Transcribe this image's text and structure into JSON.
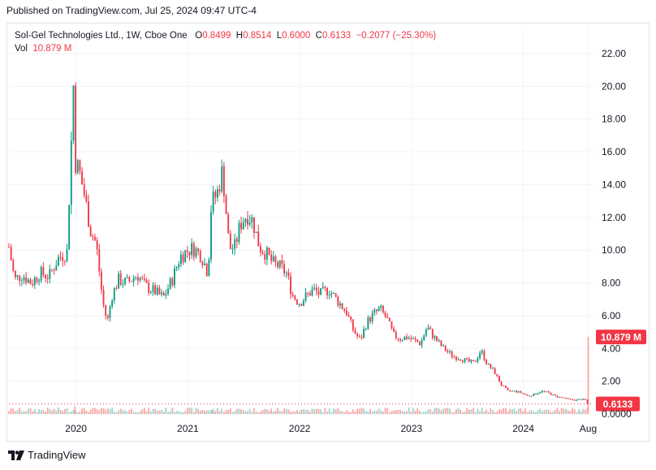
{
  "header": {
    "published": "Published on TradingView.com, Jul 25, 2024 09:47 UTC-4"
  },
  "legend": {
    "symbol": "Sol-Gel Technologies Ltd., 1W, Cboe One",
    "o_label": "O",
    "o_value": "0.8499",
    "h_label": "H",
    "h_value": "0.8514",
    "l_label": "L",
    "l_value": "0.6000",
    "c_label": "C",
    "c_value": "0.6133",
    "change": "−0.2077 (−25.30%)",
    "vol_label": "Vol",
    "vol_value": "10.879 M"
  },
  "footer": {
    "brand": "TradingView",
    "logo_icon": "tradingview-logo-icon"
  },
  "colors": {
    "up": "#089981",
    "down": "#f23645",
    "up_vol": "#9fd6cd",
    "down_vol": "#f7a9a7",
    "grid": "#f0f3fa",
    "text": "#131722"
  },
  "chart_data": {
    "type": "candlestick",
    "title": "Sol-Gel Technologies Ltd., 1W, Cboe One",
    "interval": "1W",
    "y_axis": {
      "side": "right",
      "ticks": [
        "22.00",
        "20.00",
        "18.00",
        "16.00",
        "14.00",
        "12.00",
        "10.00",
        "8.00",
        "6.00",
        "4.00",
        "2.00",
        "0.0000"
      ],
      "ylim": [
        0,
        22
      ]
    },
    "x_axis": {
      "ticks": [
        "2020",
        "2021",
        "2022",
        "2023",
        "2024",
        "Aug"
      ],
      "xlim": [
        2019.4,
        2024.62
      ],
      "tick_positions": [
        2020.0,
        2021.0,
        2022.0,
        2023.0,
        2024.0,
        2024.58
      ]
    },
    "last_price": {
      "value": 0.6133,
      "label": "0.6133"
    },
    "last_volume": {
      "value": 10.879,
      "unit": "M",
      "label": "10.879 M",
      "badge_price_level": 4.7
    },
    "grid": true,
    "price_path": [
      [
        2019.4,
        10.2
      ],
      [
        2019.45,
        8.2
      ],
      [
        2019.52,
        8.5
      ],
      [
        2019.6,
        8.0
      ],
      [
        2019.68,
        8.6
      ],
      [
        2019.76,
        8.4
      ],
      [
        2019.84,
        9.5
      ],
      [
        2019.92,
        9.9
      ],
      [
        2019.98,
        20.6
      ],
      [
        2019.99,
        15.5
      ],
      [
        2020.03,
        14.8
      ],
      [
        2020.08,
        13.2
      ],
      [
        2020.13,
        11.2
      ],
      [
        2020.18,
        10.4
      ],
      [
        2020.24,
        6.8
      ],
      [
        2020.28,
        5.6
      ],
      [
        2020.32,
        7.2
      ],
      [
        2020.38,
        8.2
      ],
      [
        2020.45,
        8.0
      ],
      [
        2020.55,
        8.5
      ],
      [
        2020.62,
        7.8
      ],
      [
        2020.7,
        7.5
      ],
      [
        2020.78,
        7.1
      ],
      [
        2020.86,
        8.2
      ],
      [
        2020.93,
        9.6
      ],
      [
        2021.0,
        10.0
      ],
      [
        2021.05,
        10.1
      ],
      [
        2021.12,
        9.7
      ],
      [
        2021.18,
        8.6
      ],
      [
        2021.21,
        12.9
      ],
      [
        2021.26,
        13.4
      ],
      [
        2021.31,
        14.9
      ],
      [
        2021.37,
        10.1
      ],
      [
        2021.42,
        10.2
      ],
      [
        2021.47,
        11.6
      ],
      [
        2021.53,
        12.2
      ],
      [
        2021.58,
        11.8
      ],
      [
        2021.64,
        10.2
      ],
      [
        2021.7,
        9.8
      ],
      [
        2021.76,
        9.2
      ],
      [
        2021.82,
        9.0
      ],
      [
        2021.88,
        8.6
      ],
      [
        2021.94,
        7.2
      ],
      [
        2022.0,
        6.8
      ],
      [
        2022.06,
        7.2
      ],
      [
        2022.12,
        7.6
      ],
      [
        2022.18,
        7.3
      ],
      [
        2022.26,
        7.6
      ],
      [
        2022.34,
        6.9
      ],
      [
        2022.42,
        6.2
      ],
      [
        2022.48,
        5.1
      ],
      [
        2022.54,
        4.5
      ],
      [
        2022.6,
        5.6
      ],
      [
        2022.66,
        6.1
      ],
      [
        2022.72,
        6.4
      ],
      [
        2022.78,
        5.8
      ],
      [
        2022.84,
        4.8
      ],
      [
        2022.9,
        4.6
      ],
      [
        2022.96,
        4.7
      ],
      [
        2023.02,
        4.5
      ],
      [
        2023.08,
        4.3
      ],
      [
        2023.14,
        5.3
      ],
      [
        2023.2,
        4.7
      ],
      [
        2023.26,
        4.2
      ],
      [
        2023.32,
        3.8
      ],
      [
        2023.38,
        3.5
      ],
      [
        2023.44,
        3.4
      ],
      [
        2023.5,
        3.2
      ],
      [
        2023.56,
        3.1
      ],
      [
        2023.62,
        3.9
      ],
      [
        2023.68,
        3.0
      ],
      [
        2023.74,
        2.6
      ],
      [
        2023.8,
        1.8
      ],
      [
        2023.86,
        1.4
      ],
      [
        2023.92,
        1.4
      ],
      [
        2023.98,
        1.3
      ],
      [
        2024.04,
        1.1
      ],
      [
        2024.1,
        1.2
      ],
      [
        2024.16,
        1.4
      ],
      [
        2024.22,
        1.3
      ],
      [
        2024.28,
        1.1
      ],
      [
        2024.34,
        1.0
      ],
      [
        2024.4,
        0.9
      ],
      [
        2024.46,
        0.85
      ],
      [
        2024.52,
        0.9
      ],
      [
        2024.56,
        0.85
      ],
      [
        2024.58,
        0.6133
      ]
    ],
    "volume_spikes": [
      {
        "x": 2019.99,
        "value": 1.1
      },
      {
        "x": 2021.22,
        "value": 0.45
      },
      {
        "x": 2024.58,
        "value": 10.879
      }
    ]
  }
}
